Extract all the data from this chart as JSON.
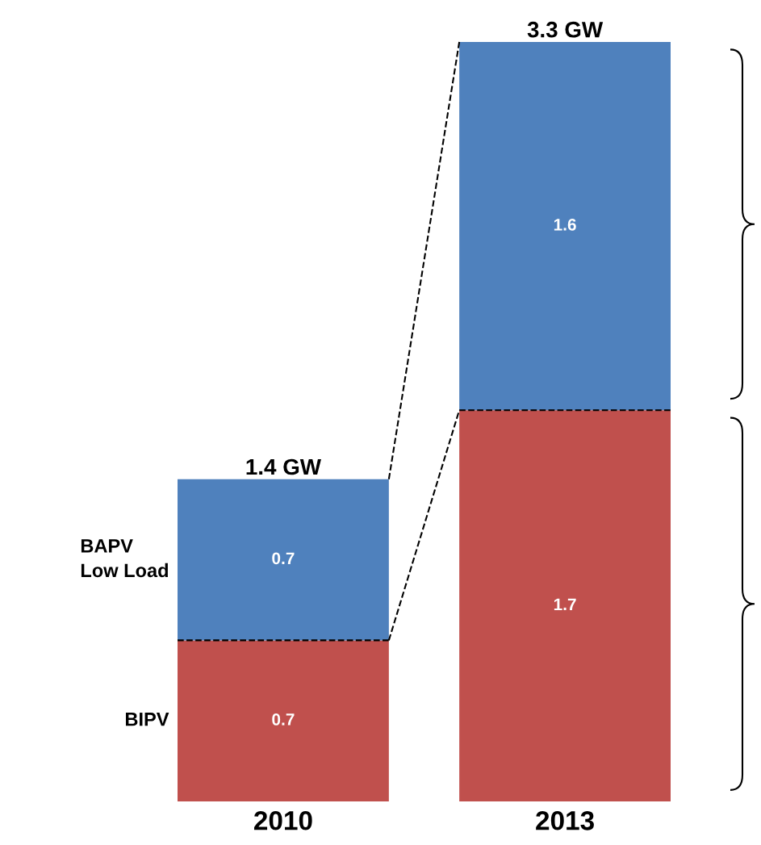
{
  "chart_data": {
    "type": "bar",
    "stacked": true,
    "categories": [
      "2010",
      "2013"
    ],
    "series": [
      {
        "name": "BIPV",
        "color": "#c0504d",
        "values": [
          0.7,
          1.7
        ]
      },
      {
        "name": "BAPV\nLow Load",
        "color": "#4f81bd",
        "values": [
          0.7,
          1.6
        ]
      }
    ],
    "data_labels": true,
    "totals": [
      "1.4 GW",
      "3.3 GW"
    ],
    "legend": false,
    "grid": false
  }
}
